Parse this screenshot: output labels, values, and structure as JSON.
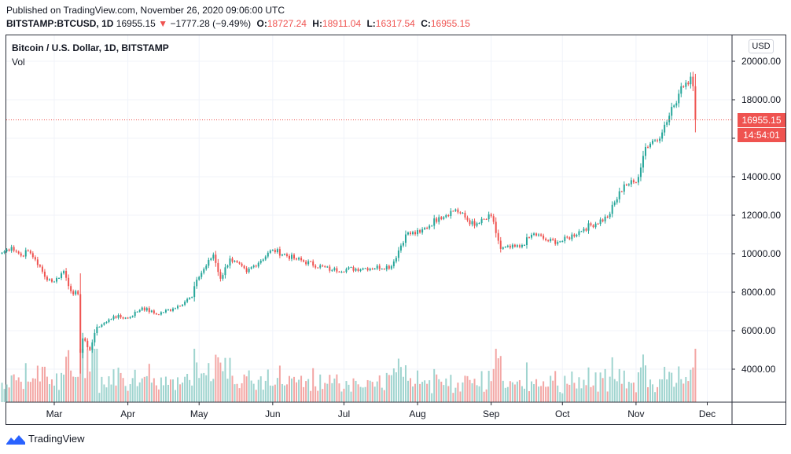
{
  "header": {
    "published": "Published on TradingView.com, November 26, 2020 09:06:00 UTC",
    "symbol": "BITSTAMP:BTCUSD, 1D",
    "last": "16955.15",
    "change_arrow": "▼",
    "change": "−1777.28 (−9.49%)",
    "o_label": "O:",
    "o_value": "18727.24",
    "h_label": "H:",
    "h_value": "18911.04",
    "l_label": "L:",
    "l_value": "16317.54",
    "c_label": "C:",
    "c_value": "16955.15"
  },
  "legend": {
    "title": "Bitcoin / U.S. Dollar, 1D, BITSTAMP",
    "volume": "Vol"
  },
  "currency_button": "USD",
  "price_tag": {
    "price": "16955.15",
    "countdown": "14:54:01"
  },
  "footer": {
    "brand": "TradingView",
    "logo_icon": "tradingview-logo-icon"
  },
  "colors": {
    "up": "#26a69a",
    "down": "#ef5350",
    "up_vol": "#9fd4cf",
    "down_vol": "#f3a6a4",
    "grid": "#f0f3fa"
  },
  "chart_data": {
    "type": "candlestick",
    "series_name": "BTCUSD",
    "interval": "1D",
    "ylim": [
      2500,
      20500
    ],
    "y_ticks": [
      4000,
      6000,
      8000,
      10000,
      12000,
      14000,
      16000,
      18000,
      20000
    ],
    "y_tick_labels": [
      "4000.00",
      "6000.00",
      "8000.00",
      "10000.00",
      "12000.00",
      "14000.00",
      "16000.00",
      "18000.00",
      "20000.00"
    ],
    "x_tick_labels": [
      "Mar",
      "Apr",
      "May",
      "Jun",
      "Jul",
      "Aug",
      "Sep",
      "Oct",
      "Nov",
      "Dec"
    ],
    "last_price": 16955.15,
    "anchors": [
      [
        "2020-02-08",
        10050
      ],
      [
        "2020-02-12",
        10350
      ],
      [
        "2020-02-16",
        9900
      ],
      [
        "2020-02-19",
        10150
      ],
      [
        "2020-02-22",
        9700
      ],
      [
        "2020-02-26",
        8800
      ],
      [
        "2020-03-01",
        8550
      ],
      [
        "2020-03-05",
        9100
      ],
      [
        "2020-03-08",
        8050
      ],
      [
        "2020-03-11",
        7900
      ],
      [
        "2020-03-12",
        4850
      ],
      [
        "2020-03-13",
        5600
      ],
      [
        "2020-03-16",
        5000
      ],
      [
        "2020-03-19",
        6200
      ],
      [
        "2020-03-23",
        6450
      ],
      [
        "2020-03-26",
        6750
      ],
      [
        "2020-04-01",
        6650
      ],
      [
        "2020-04-07",
        7200
      ],
      [
        "2020-04-13",
        6850
      ],
      [
        "2020-04-20",
        7150
      ],
      [
        "2020-04-28",
        7750
      ],
      [
        "2020-04-30",
        8650
      ],
      [
        "2020-05-07",
        9950
      ],
      [
        "2020-05-10",
        8700
      ],
      [
        "2020-05-14",
        9750
      ],
      [
        "2020-05-21",
        9050
      ],
      [
        "2020-06-01",
        10200
      ],
      [
        "2020-06-10",
        9750
      ],
      [
        "2020-06-26",
        9150
      ],
      [
        "2020-07-10",
        9250
      ],
      [
        "2020-07-21",
        9350
      ],
      [
        "2020-07-27",
        11000
      ],
      [
        "2020-08-02",
        11100
      ],
      [
        "2020-08-10",
        11900
      ],
      [
        "2020-08-17",
        12300
      ],
      [
        "2020-08-25",
        11450
      ],
      [
        "2020-09-01",
        11950
      ],
      [
        "2020-09-05",
        10250
      ],
      [
        "2020-09-13",
        10350
      ],
      [
        "2020-09-19",
        11050
      ],
      [
        "2020-09-25",
        10650
      ],
      [
        "2020-10-01",
        10650
      ],
      [
        "2020-10-10",
        11300
      ],
      [
        "2020-10-20",
        11900
      ],
      [
        "2020-10-27",
        13600
      ],
      [
        "2020-11-01",
        13700
      ],
      [
        "2020-11-05",
        15550
      ],
      [
        "2020-11-12",
        16300
      ],
      [
        "2020-11-17",
        17700
      ],
      [
        "2020-11-20",
        18700
      ],
      [
        "2020-11-24",
        19200
      ],
      [
        "2020-11-25",
        18700
      ],
      [
        "2020-11-26",
        16955
      ]
    ]
  }
}
